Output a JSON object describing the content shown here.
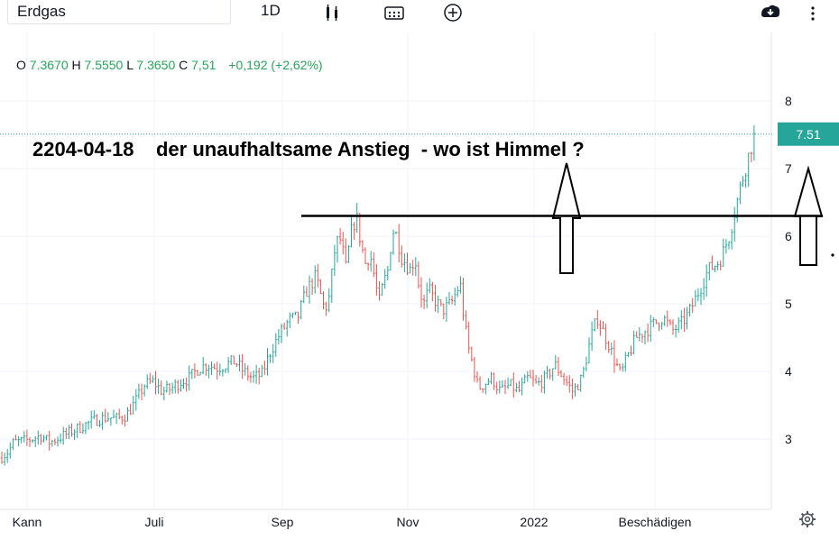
{
  "toolbar": {
    "symbol": "Erdgas",
    "interval": "1D",
    "icons": [
      "candles-icon",
      "indicators-icon",
      "compare-add-icon",
      "snapshot-download-icon",
      "more-vertical-icon"
    ]
  },
  "legend": {
    "o_label": "O",
    "o_value": "7.3670",
    "h_label": "H",
    "h_value": "7.5550",
    "l_label": "L",
    "l_value": "7.3650",
    "c_label": "C",
    "c_value": "7,51",
    "change": "+0,192 (+2,62%)"
  },
  "colors": {
    "up": "#26a69a",
    "down": "#ef5350",
    "accent": "#26a69a",
    "legend_green": "#26a65b"
  },
  "chart_data": {
    "type": "bar",
    "title": "2204-04-18    der unaufhaltsame Anstieg  - wo ist Himmel ?",
    "x_tick_labels": [
      "Kann",
      "Juli",
      "Sep",
      "Nov",
      "2022",
      "Beschädigen"
    ],
    "y_tick_labels": [
      "3",
      "4",
      "5",
      "6",
      "7",
      "8"
    ],
    "ylim": [
      2.1,
      8.6
    ],
    "last_price": "7.51",
    "resistance_level": 6.3,
    "grid": true,
    "path": [
      [
        0,
        2.72
      ],
      [
        8,
        2.8
      ],
      [
        15,
        2.95
      ],
      [
        30,
        2.98
      ],
      [
        45,
        3.05
      ],
      [
        55,
        2.95
      ],
      [
        70,
        3.05
      ],
      [
        85,
        3.15
      ],
      [
        100,
        3.25
      ],
      [
        110,
        3.3
      ],
      [
        120,
        3.32
      ],
      [
        130,
        3.3
      ],
      [
        140,
        3.35
      ],
      [
        150,
        3.55
      ],
      [
        160,
        3.8
      ],
      [
        170,
        3.85
      ],
      [
        180,
        3.7
      ],
      [
        190,
        3.75
      ],
      [
        200,
        3.85
      ],
      [
        210,
        3.9
      ],
      [
        220,
        4.05
      ],
      [
        230,
        4.1
      ],
      [
        240,
        4.05
      ],
      [
        250,
        4.1
      ],
      [
        260,
        4.15
      ],
      [
        270,
        4.0
      ],
      [
        280,
        3.9
      ],
      [
        290,
        3.95
      ],
      [
        300,
        4.3
      ],
      [
        310,
        4.55
      ],
      [
        320,
        4.75
      ],
      [
        330,
        4.8
      ],
      [
        340,
        5.2
      ],
      [
        350,
        5.4
      ],
      [
        360,
        4.9
      ],
      [
        365,
        5.1
      ],
      [
        372,
        5.9
      ],
      [
        378,
        5.95
      ],
      [
        383,
        5.5
      ],
      [
        390,
        6.1
      ],
      [
        395,
        6.3
      ],
      [
        400,
        5.9
      ],
      [
        405,
        5.6
      ],
      [
        410,
        5.75
      ],
      [
        415,
        5.4
      ],
      [
        420,
        5.0
      ],
      [
        425,
        5.3
      ],
      [
        430,
        5.5
      ],
      [
        435,
        6.1
      ],
      [
        440,
        6.0
      ],
      [
        445,
        5.7
      ],
      [
        450,
        5.6
      ],
      [
        455,
        5.5
      ],
      [
        460,
        5.7
      ],
      [
        465,
        5.2
      ],
      [
        470,
        5.0
      ],
      [
        475,
        5.2
      ],
      [
        480,
        5.1
      ],
      [
        490,
        4.9
      ],
      [
        500,
        5.0
      ],
      [
        510,
        5.3
      ],
      [
        515,
        4.7
      ],
      [
        520,
        4.3
      ],
      [
        525,
        4.05
      ],
      [
        530,
        3.75
      ],
      [
        535,
        3.8
      ],
      [
        545,
        3.9
      ],
      [
        555,
        3.7
      ],
      [
        565,
        3.8
      ],
      [
        575,
        3.7
      ],
      [
        585,
        3.9
      ],
      [
        595,
        3.8
      ],
      [
        605,
        3.9
      ],
      [
        615,
        4.1
      ],
      [
        625,
        3.9
      ],
      [
        635,
        3.7
      ],
      [
        645,
        3.9
      ],
      [
        655,
        4.5
      ],
      [
        662,
        4.8
      ],
      [
        668,
        4.6
      ],
      [
        675,
        4.4
      ],
      [
        680,
        4.2
      ],
      [
        688,
        3.95
      ],
      [
        695,
        4.2
      ],
      [
        705,
        4.5
      ],
      [
        715,
        4.6
      ],
      [
        725,
        4.7
      ],
      [
        735,
        4.8
      ],
      [
        745,
        4.6
      ],
      [
        755,
        4.7
      ],
      [
        765,
        4.9
      ],
      [
        775,
        5.2
      ],
      [
        785,
        5.5
      ],
      [
        795,
        5.6
      ],
      [
        800,
        5.7
      ],
      [
        808,
        6.0
      ],
      [
        815,
        6.4
      ],
      [
        822,
        6.8
      ],
      [
        828,
        7.1
      ],
      [
        833,
        7.35
      ],
      [
        837,
        7.51
      ]
    ]
  }
}
